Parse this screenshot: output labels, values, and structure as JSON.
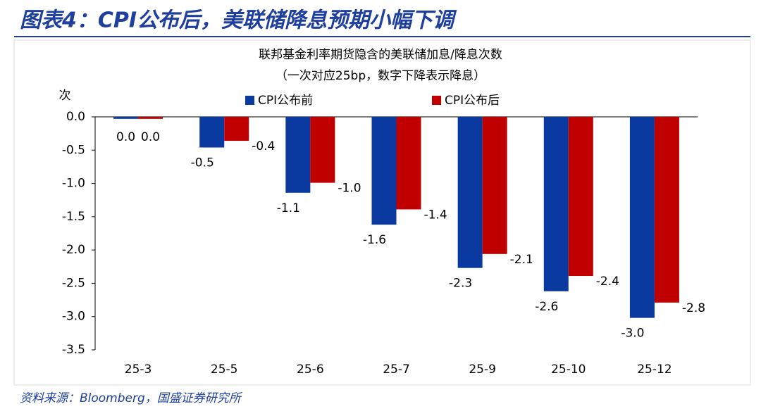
{
  "header": {
    "title": "图表4：CPI公布后，美联储降息预期小幅下调"
  },
  "chart_data": {
    "type": "bar",
    "title": "联邦基金利率期货隐含的美联储加息/降息次数",
    "subtitle": "（一次对应25bp，数字下降表示降息）",
    "y_label": "次",
    "categories": [
      "25-3",
      "25-5",
      "25-6",
      "25-7",
      "25-9",
      "25-10",
      "25-12"
    ],
    "series": [
      {
        "name": "CPI公布前",
        "color": "#0a3aa0",
        "values": [
          -0.03,
          -0.46,
          -1.14,
          -1.62,
          -2.27,
          -2.62,
          -3.02
        ],
        "value_labels": [
          "0.0",
          "-0.5",
          "-1.1",
          "-1.6",
          "-2.3",
          "-2.6",
          "-3.0"
        ]
      },
      {
        "name": "CPI公布后",
        "color": "#c00000",
        "values": [
          -0.03,
          -0.36,
          -0.99,
          -1.39,
          -2.06,
          -2.39,
          -2.79
        ],
        "value_labels": [
          "0.0",
          "-0.4",
          "-1.0",
          "-1.4",
          "-2.1",
          "-2.4",
          "-2.8"
        ]
      }
    ],
    "ylim": [
      -3.5,
      0
    ],
    "yticks": [
      {
        "value": 0,
        "label": "0.0"
      },
      {
        "value": -0.5,
        "label": "-0.5"
      },
      {
        "value": -1,
        "label": "-1.0"
      },
      {
        "value": -1.5,
        "label": "-1.5"
      },
      {
        "value": -2,
        "label": "-2.0"
      },
      {
        "value": -2.5,
        "label": "-2.5"
      },
      {
        "value": -3,
        "label": "-3.0"
      },
      {
        "value": -3.5,
        "label": "-3.5"
      }
    ],
    "legend": "top"
  },
  "footer": {
    "source": "资料来源：Bloomberg，国盛证券研究所"
  }
}
